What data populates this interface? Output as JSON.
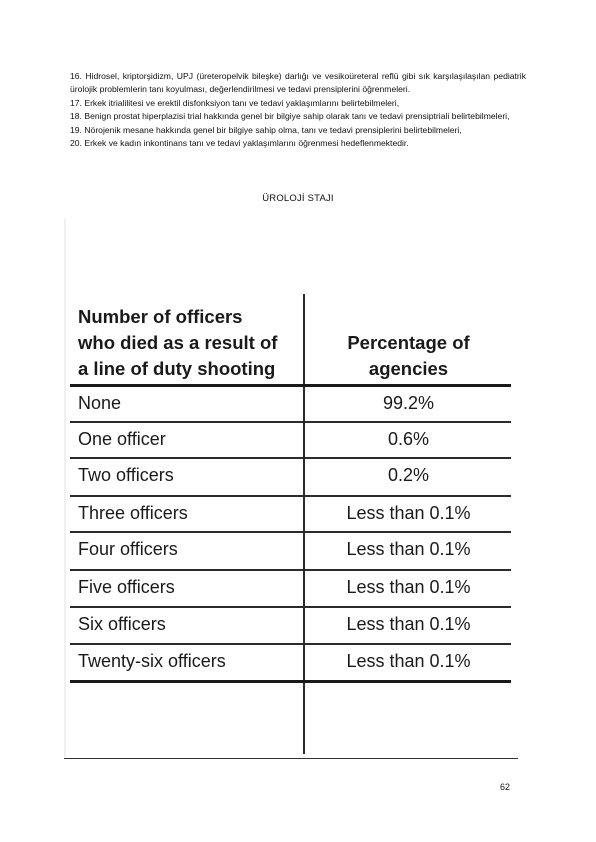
{
  "paragraphs": [
    "16. Hidrosel, kriptorşidizm, UPJ (üreteropelvik bileşke) darlığı ve vesikoüreteral reflü gibi sık karşılaşılaşılan pediatrik ürolojik problemlerin tanı koyulması, değerlendirilmesi ve tedavi prensiplerini öğrenmeleri.",
    "17. Erkek itrialilitesi ve erektil disfonksiyon tanı ve tedavi yaklaşımlarını belirtebilmeleri,",
    "18. Benign prostat hiperplazisi trial hakkında genel bir bilgiye sahip olarak tanı ve tedavi prensiptriali belirtebilmeleri,",
    "19. Nörojenik mesane hakkında genel bir bilgiye sahip olma, tanı ve tedavi prensiplerini belirtebilmeleri,",
    "20. Erkek ve kadın inkontinans tanı ve tedavi yaklaşımlarını öğrenmesi hedeflenmektedir."
  ],
  "section_title": "ÜROLOJİ STAJI",
  "table": {
    "header_left_lines": [
      "Number of officers",
      "who died as a result of",
      "a line of duty shooting"
    ],
    "header_right_lines": [
      "Percentage of",
      "agencies"
    ],
    "rows": [
      {
        "label": "None",
        "value": "99.2%"
      },
      {
        "label": "One officer",
        "value": "0.6%"
      },
      {
        "label": "Two officers",
        "value": "0.2%"
      },
      {
        "label": "Three officers",
        "value": "Less than 0.1%"
      },
      {
        "label": "Four officers",
        "value": "Less than 0.1%"
      },
      {
        "label": "Five officers",
        "value": "Less than 0.1%"
      },
      {
        "label": "Six officers",
        "value": "Less than 0.1%"
      },
      {
        "label": "Twenty-six officers",
        "value": "Less than 0.1%"
      }
    ]
  },
  "page_number": "62"
}
